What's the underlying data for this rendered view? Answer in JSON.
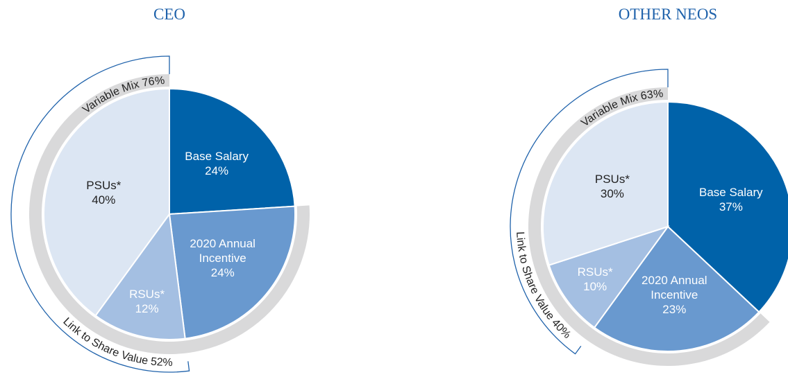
{
  "chart_data": [
    {
      "type": "pie",
      "title": "CEO",
      "categories": [
        "Base Salary",
        "2020 Annual Incentive",
        "RSUs*",
        "PSUs*"
      ],
      "values": [
        24,
        24,
        12,
        40
      ],
      "value_labels": [
        "24%",
        "24%",
        "12%",
        "40%"
      ],
      "colors": [
        "#0062a9",
        "#6999cf",
        "#a4bfe2",
        "#dce6f3"
      ],
      "annotations": [
        "Variable Mix 76%",
        "Link to Share Value 52%"
      ]
    },
    {
      "type": "pie",
      "title": "OTHER NEOS",
      "categories": [
        "Base Salary",
        "2020 Annual Incentive",
        "RSUs*",
        "PSUs*"
      ],
      "values": [
        37,
        23,
        10,
        30
      ],
      "value_labels": [
        "37%",
        "23%",
        "10%",
        "30%"
      ],
      "colors": [
        "#0062a9",
        "#6999cf",
        "#a4bfe2",
        "#dce6f3"
      ],
      "annotations": [
        "Variable Mix 63%",
        "Link to Share Value 40%"
      ]
    }
  ]
}
